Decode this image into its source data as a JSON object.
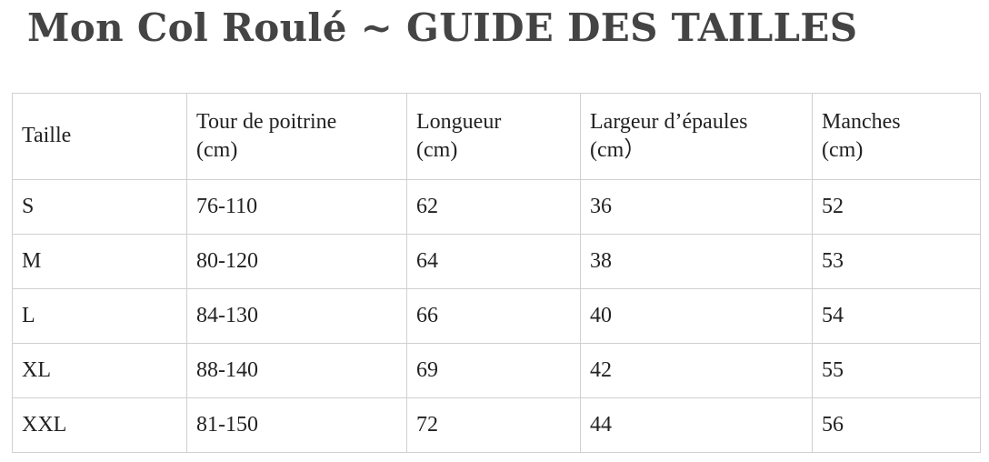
{
  "header": {
    "title": "Mon Col Roulé ~ GUIDE DES TAILLES"
  },
  "table": {
    "columns": [
      "Taille",
      "Tour de poitrine\n(cm)",
      "Longueur\n(cm)",
      "Largeur d’épaules\n(cm）",
      "Manches\n(cm)"
    ],
    "rows": [
      [
        "S",
        "76-110",
        "62",
        "36",
        "52"
      ],
      [
        "M",
        "80-120",
        "64",
        "38",
        "53"
      ],
      [
        "L",
        "84-130",
        "66",
        "40",
        "54"
      ],
      [
        "XL",
        "88-140",
        "69",
        "42",
        "55"
      ],
      [
        "XXL",
        "81-150",
        "72",
        "44",
        "56"
      ]
    ]
  }
}
